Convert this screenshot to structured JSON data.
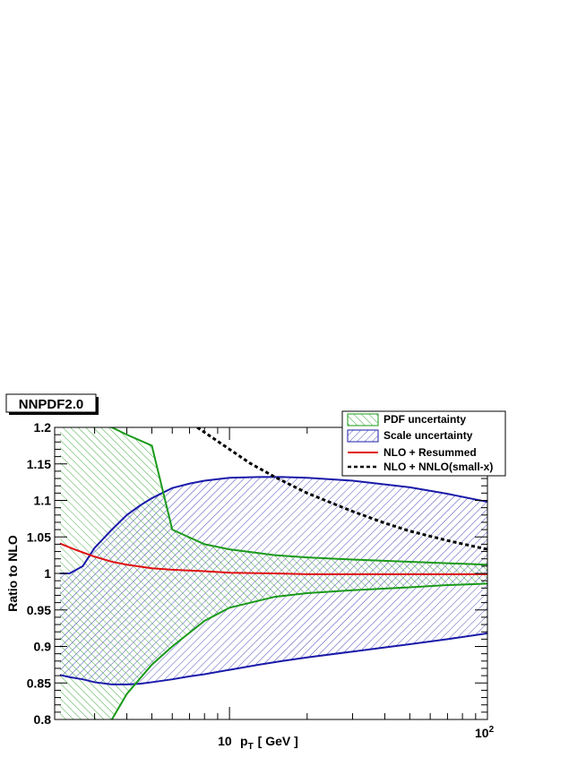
{
  "chart_data": {
    "type": "area",
    "tag": "NNPDF2.0",
    "xlabel": "p",
    "xlabel_sub": "T",
    "xlabel_unit": "[ GeV ]",
    "ylabel": "Ratio to NLO",
    "xscale": "log",
    "xlim": [
      2.1,
      100
    ],
    "ylim": [
      0.8,
      1.2
    ],
    "grid": false,
    "legend_position": "top-right",
    "x_tick_labels": [
      {
        "value": 10,
        "base": "10",
        "exp": ""
      },
      {
        "value": 100,
        "base": "10",
        "exp": "2"
      }
    ],
    "y_ticks": [
      0.8,
      0.85,
      0.9,
      0.95,
      1,
      1.05,
      1.1,
      1.15,
      1.2
    ],
    "y_tick_labels": [
      "0.8",
      "0.85",
      "0.9",
      "0.95",
      "1",
      "1.05",
      "1.1",
      "1.15",
      "1.2"
    ],
    "series": [
      {
        "key": "pdf",
        "name": "PDF uncertainty",
        "kind": "band",
        "color": "#1a9a1a",
        "x": [
          2.2,
          2.5,
          3.0,
          3.5,
          4.0,
          5.0,
          6.0,
          8.0,
          10.0,
          15.0,
          20.0,
          30.0,
          50.0,
          70.0,
          100.0
        ],
        "upper": [
          1.22,
          1.22,
          1.205,
          1.2,
          1.19,
          1.175,
          1.06,
          1.04,
          1.033,
          1.025,
          1.022,
          1.019,
          1.016,
          1.014,
          1.012
        ],
        "lower": [
          0.78,
          0.78,
          0.78,
          0.8,
          0.835,
          0.875,
          0.9,
          0.935,
          0.953,
          0.968,
          0.973,
          0.977,
          0.981,
          0.984,
          0.986
        ]
      },
      {
        "key": "scale",
        "name": "Scale uncertainty",
        "kind": "band",
        "color": "#1a1aaa",
        "x": [
          2.2,
          2.4,
          2.7,
          3.0,
          3.5,
          4.0,
          4.5,
          5.0,
          6.0,
          7.0,
          8.0,
          10.0,
          13.0,
          16.0,
          20.0,
          30.0,
          50.0,
          70.0,
          100.0
        ],
        "upper": [
          1.0,
          1.0,
          1.01,
          1.035,
          1.06,
          1.08,
          1.093,
          1.103,
          1.117,
          1.123,
          1.127,
          1.131,
          1.132,
          1.132,
          1.131,
          1.127,
          1.118,
          1.109,
          1.098
        ],
        "lower": [
          0.861,
          0.858,
          0.855,
          0.851,
          0.848,
          0.848,
          0.849,
          0.851,
          0.855,
          0.859,
          0.862,
          0.868,
          0.875,
          0.88,
          0.885,
          0.893,
          0.903,
          0.91,
          0.918
        ]
      },
      {
        "key": "resummed",
        "name": "NLO + Resummed",
        "kind": "line",
        "color": "#e01010",
        "x": [
          2.2,
          2.5,
          3.0,
          3.5,
          4.0,
          5.0,
          6.0,
          8.0,
          10.0,
          15.0,
          20.0,
          30.0,
          50.0,
          100.0
        ],
        "y": [
          1.041,
          1.033,
          1.023,
          1.016,
          1.012,
          1.007,
          1.005,
          1.003,
          1.001,
          1.0,
          0.999,
          0.999,
          0.999,
          0.999
        ]
      },
      {
        "key": "nnlo",
        "name": "NLO + NNLO(small-x)",
        "kind": "dashed",
        "color": "#000000",
        "x": [
          7.5,
          9.0,
          10.0,
          12.0,
          15.0,
          20.0,
          30.0,
          40.0,
          50.0,
          70.0,
          100.0
        ],
        "y": [
          1.2,
          1.181,
          1.17,
          1.151,
          1.132,
          1.11,
          1.085,
          1.069,
          1.058,
          1.045,
          1.033
        ]
      }
    ]
  }
}
